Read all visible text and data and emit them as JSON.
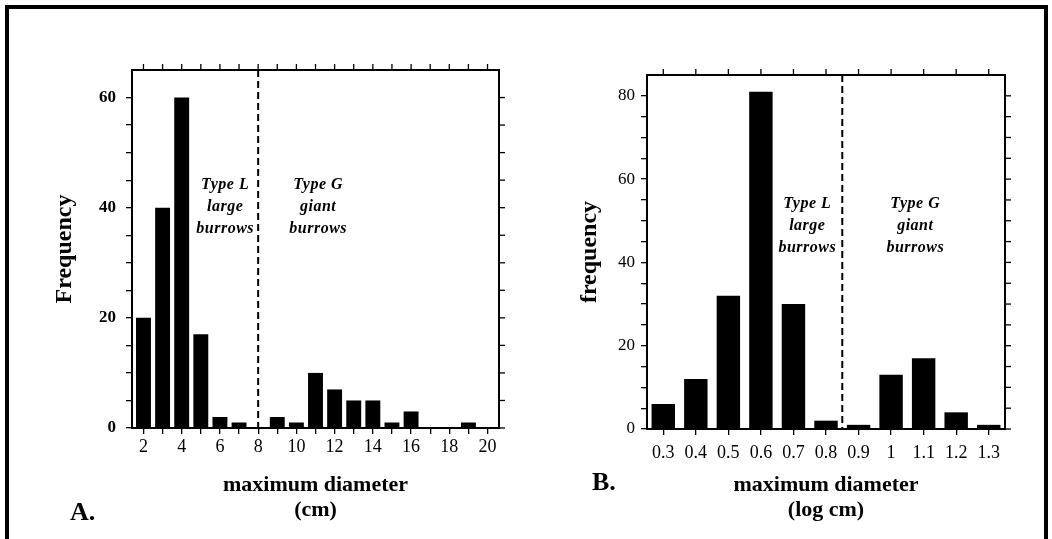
{
  "chart_data": [
    {
      "type": "bar",
      "title": "A.",
      "xlabel": "maximum diameter\n(cm)",
      "ylabel": "Frequency",
      "x": [
        2,
        3,
        4,
        5,
        6,
        7,
        9,
        10,
        11,
        12,
        13,
        14,
        15,
        16,
        19
      ],
      "values": [
        20,
        40,
        60,
        17,
        2,
        1,
        2,
        1,
        10,
        7,
        5,
        5,
        1,
        3,
        1
      ],
      "color": "#000000",
      "xlim": [
        1.4,
        20.6
      ],
      "ylim": [
        0,
        65
      ],
      "xticks": [
        2,
        {
          "value": 3,
          "label": null
        },
        4,
        {
          "value": 5,
          "label": null
        },
        6,
        {
          "value": 7,
          "label": null
        },
        8,
        {
          "value": 9,
          "label": null
        },
        10,
        {
          "value": 11,
          "label": null
        },
        12,
        {
          "value": 13,
          "label": null
        },
        14,
        {
          "value": 15,
          "label": null
        },
        16,
        {
          "value": 17,
          "label": null
        },
        18,
        {
          "value": 19,
          "label": null
        },
        20
      ],
      "yticks": [
        0,
        {
          "value": 5,
          "label": null
        },
        {
          "value": 10,
          "label": null
        },
        {
          "value": 15,
          "label": null
        },
        20,
        {
          "value": 25,
          "label": null
        },
        {
          "value": 30,
          "label": null
        },
        {
          "value": 35,
          "label": null
        },
        40,
        {
          "value": 45,
          "label": null
        },
        {
          "value": 50,
          "label": null
        },
        {
          "value": 55,
          "label": null
        },
        60
      ],
      "ref_lines": [
        {
          "axis": "x",
          "value": 8,
          "line_style": "dashed"
        }
      ],
      "annotations": [
        "Type L\nlarge\nburrows",
        "Type G\ngiant\nburrows"
      ]
    },
    {
      "type": "bar",
      "title": "B.",
      "xlabel": "maximum diameter\n(log cm)",
      "ylabel": "frequency",
      "x": [
        0.3,
        0.4,
        0.5,
        0.6,
        0.7,
        0.8,
        0.9,
        1,
        1.1,
        1.2,
        1.3
      ],
      "values": [
        6,
        12,
        32,
        81,
        30,
        2,
        1,
        13,
        17,
        4,
        1
      ],
      "color": "#000000",
      "xlim": [
        0.25,
        1.35
      ],
      "ylim": [
        0,
        85
      ],
      "xticks": [
        0.3,
        0.4,
        0.5,
        0.6,
        0.7,
        0.8,
        0.9,
        1,
        1.1,
        1.2,
        1.3
      ],
      "yticks": [
        0,
        {
          "value": 5,
          "label": null
        },
        {
          "value": 10,
          "label": null
        },
        {
          "value": 15,
          "label": null
        },
        20,
        {
          "value": 25,
          "label": null
        },
        {
          "value": 30,
          "label": null
        },
        {
          "value": 35,
          "label": null
        },
        40,
        {
          "value": 45,
          "label": null
        },
        {
          "value": 50,
          "label": null
        },
        {
          "value": 55,
          "label": null
        },
        60,
        {
          "value": 65,
          "label": null
        },
        {
          "value": 70,
          "label": null
        },
        {
          "value": 75,
          "label": null
        },
        80
      ],
      "ref_lines": [
        {
          "axis": "x",
          "value": 0.85,
          "line_style": "dashed"
        }
      ],
      "annotations": [
        "Type L\nlarge\nburrows",
        "Type G\ngiant\nburrows"
      ]
    }
  ]
}
